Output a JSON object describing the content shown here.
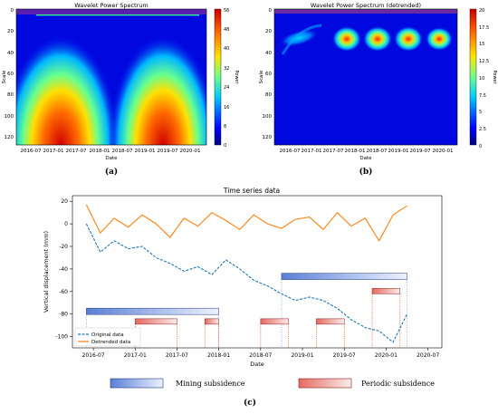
{
  "panels": {
    "a": {
      "title": "Wavelet Power Spectrum",
      "xlabel": "Date",
      "ylabel": "Scale",
      "colorbar_label": "Power",
      "caption": "(a)"
    },
    "b": {
      "title": "Wavelet Power Spectrum (detrended)",
      "xlabel": "Date",
      "ylabel": "Scale",
      "colorbar_label": "Power",
      "caption": "(b)"
    },
    "c": {
      "caption": "(c)"
    }
  },
  "legend_bottom": {
    "mining": "Mining subsidence",
    "periodic": "Periodic subsidence"
  },
  "colors": {
    "original": "#1f77b4",
    "detrended": "#ff7f0e",
    "mining_bar": "#6f8fd8",
    "periodic_bar": "#e9817a"
  },
  "chart_data": [
    {
      "type": "heatmap",
      "title": "Wavelet Power Spectrum",
      "xlabel": "Date",
      "ylabel": "Scale",
      "x_ticks": [
        "2016-07",
        "2017-01",
        "2017-07",
        "2018-01",
        "2018-07",
        "2019-01",
        "2019-07",
        "2020-01"
      ],
      "y_ticks": [
        0,
        20,
        40,
        60,
        80,
        100,
        120
      ],
      "ylim": [
        0,
        128
      ],
      "colorbar": {
        "label": "Power",
        "ticks": [
          0,
          8,
          16,
          24,
          32,
          40,
          48,
          56
        ],
        "range": [
          0,
          56
        ]
      },
      "blobs": [
        {
          "x_center": "2017-01",
          "scale_center": 120,
          "peak_power": 56
        },
        {
          "x_center": "2019-10",
          "scale_center": 120,
          "peak_power": 56
        }
      ]
    },
    {
      "type": "heatmap",
      "title": "Wavelet Power Spectrum (detrended)",
      "xlabel": "Date",
      "ylabel": "Scale",
      "x_ticks": [
        "2016-07",
        "2017-01",
        "2017-07",
        "2018-01",
        "2018-07",
        "2019-01",
        "2019-07",
        "2020-01"
      ],
      "y_ticks": [
        0,
        20,
        40,
        60,
        80,
        100,
        120
      ],
      "ylim": [
        0,
        128
      ],
      "colorbar": {
        "label": "Power",
        "ticks": [
          0.0,
          2.5,
          5.0,
          7.5,
          10.0,
          12.5,
          15.0,
          17.5,
          20.0
        ],
        "range": [
          0,
          20
        ]
      },
      "blobs": [
        {
          "x_center": "2017-02",
          "scale_center": 30,
          "peak_power": 8
        },
        {
          "x_center": "2017-08",
          "scale_center": 27,
          "peak_power": 18
        },
        {
          "x_center": "2018-04",
          "scale_center": 27,
          "peak_power": 20
        },
        {
          "x_center": "2018-12",
          "scale_center": 27,
          "peak_power": 20
        },
        {
          "x_center": "2019-08",
          "scale_center": 28,
          "peak_power": 18
        }
      ]
    },
    {
      "type": "line",
      "title": "Time series data",
      "xlabel": "Date",
      "ylabel": "Vertical displacement (mm)",
      "x_ticks": [
        "2016-07",
        "2017-01",
        "2017-07",
        "2018-01",
        "2018-07",
        "2019-01",
        "2019-07",
        "2020-01",
        "2020-07"
      ],
      "y_ticks": [
        20,
        0,
        -20,
        -40,
        -60,
        -80,
        -100
      ],
      "ylim": [
        -110,
        25
      ],
      "legend": "lower-left",
      "series": [
        {
          "name": "Original data",
          "style": "dashed",
          "x": [
            "2016-06",
            "2016-08",
            "2016-10",
            "2016-12",
            "2017-02",
            "2017-04",
            "2017-06",
            "2017-08",
            "2017-10",
            "2017-12",
            "2018-02",
            "2018-04",
            "2018-06",
            "2018-08",
            "2018-10",
            "2018-12",
            "2019-02",
            "2019-04",
            "2019-06",
            "2019-08",
            "2019-10",
            "2019-12",
            "2020-02",
            "2020-04"
          ],
          "y": [
            0,
            -25,
            -15,
            -22,
            -20,
            -30,
            -35,
            -42,
            -38,
            -45,
            -32,
            -40,
            -50,
            -55,
            -62,
            -68,
            -65,
            -68,
            -75,
            -85,
            -92,
            -95,
            -105,
            -80
          ]
        },
        {
          "name": "Detrended data",
          "style": "solid",
          "x": [
            "2016-06",
            "2016-08",
            "2016-10",
            "2016-12",
            "2017-02",
            "2017-04",
            "2017-06",
            "2017-08",
            "2017-10",
            "2017-12",
            "2018-02",
            "2018-04",
            "2018-06",
            "2018-08",
            "2018-10",
            "2018-12",
            "2019-02",
            "2019-04",
            "2019-06",
            "2019-08",
            "2019-10",
            "2019-12",
            "2020-02",
            "2020-04"
          ],
          "y": [
            17,
            -8,
            5,
            -3,
            8,
            0,
            -12,
            5,
            -2,
            10,
            3,
            -5,
            8,
            0,
            -4,
            4,
            6,
            -5,
            10,
            -2,
            5,
            -15,
            8,
            16
          ]
        }
      ],
      "mining_subsidence": [
        {
          "start": "2016-06",
          "end": "2018-01",
          "level": -78
        },
        {
          "start": "2018-10",
          "end": "2020-04",
          "level": -47
        }
      ],
      "periodic_subsidence": [
        {
          "start": "2017-01",
          "end": "2017-07",
          "level": -87
        },
        {
          "start": "2017-11",
          "end": "2018-01",
          "level": -87
        },
        {
          "start": "2018-07",
          "end": "2018-11",
          "level": -87
        },
        {
          "start": "2019-03",
          "end": "2019-07",
          "level": -87
        },
        {
          "start": "2019-11",
          "end": "2020-03",
          "level": -60
        }
      ]
    }
  ]
}
